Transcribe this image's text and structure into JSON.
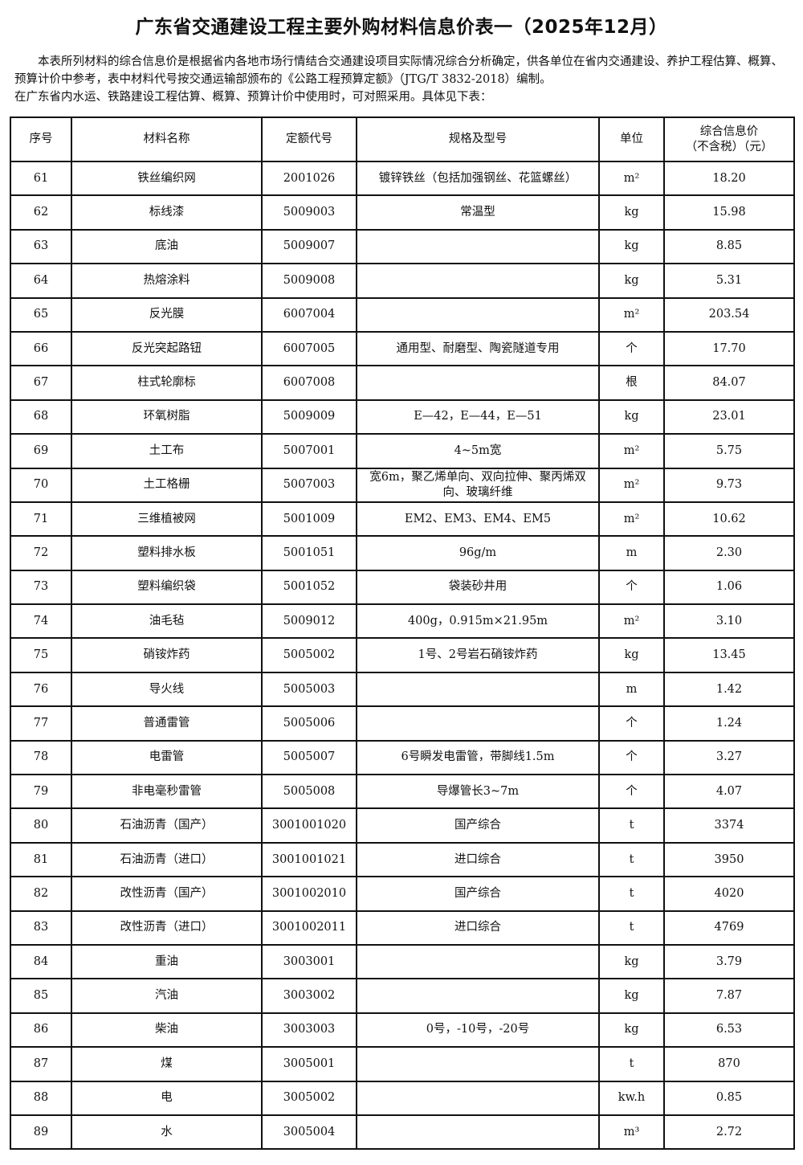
{
  "title": "广东省交通建设工程主要外购材料信息价表一（2025年12月）",
  "intro": [
    "本表所列材料的综合信息价是根据省内各地市场行情结合交通建设项目实际情况综合分析确定，供各单位在省内交通建设、养护工程估算、概算、预算计价中参考，表中材料代号按交通运输部颁布的《公路工程预算定额》（JTG/T 3832-2018）编制。",
    "在广东省内水运、铁路建设工程估算、概算、预算计价中使用时，可对照采用。具体见下表："
  ],
  "table": {
    "headers": [
      "序号",
      "材料名称",
      "定额代号",
      "规格及型号",
      "单位",
      "综合信息价",
      "（不含税）（元）"
    ],
    "rows": [
      [
        "61",
        "铁丝编织网",
        "2001026",
        "镀锌铁丝（包括加强钢丝、花篮螺丝）",
        "m²",
        "18.20"
      ],
      [
        "62",
        "标线漆",
        "5009003",
        "常温型",
        "kg",
        "15.98"
      ],
      [
        "63",
        "底油",
        "5009007",
        "",
        "kg",
        "8.85"
      ],
      [
        "64",
        "热熔涂料",
        "5009008",
        "",
        "kg",
        "5.31"
      ],
      [
        "65",
        "反光膜",
        "6007004",
        "",
        "m²",
        "203.54"
      ],
      [
        "66",
        "反光突起路钮",
        "6007005",
        "通用型、耐磨型、陶瓷隧道专用",
        "个",
        "17.70"
      ],
      [
        "67",
        "柱式轮廓标",
        "6007008",
        "",
        "根",
        "84.07"
      ],
      [
        "68",
        "环氧树脂",
        "5009009",
        "E—42，E—44，E—51",
        "kg",
        "23.01"
      ],
      [
        "69",
        "土工布",
        "5007001",
        "4~5m宽",
        "m²",
        "5.75"
      ],
      [
        "70",
        "土工格栅",
        "5007003",
        "宽6m，聚乙烯单向、双向拉伸、聚丙烯双向、玻璃纤维",
        "m²",
        "9.73"
      ],
      [
        "71",
        "三维植被网",
        "5001009",
        "EM2、EM3、EM4、EM5",
        "m²",
        "10.62"
      ],
      [
        "72",
        "塑料排水板",
        "5001051",
        "96g/m",
        "m",
        "2.30"
      ],
      [
        "73",
        "塑料编织袋",
        "5001052",
        "袋装砂井用",
        "个",
        "1.06"
      ],
      [
        "74",
        "油毛毡",
        "5009012",
        "400g，0.915m×21.95m",
        "m²",
        "3.10"
      ],
      [
        "75",
        "硝铵炸药",
        "5005002",
        "1号、2号岩石硝铵炸药",
        "kg",
        "13.45"
      ],
      [
        "76",
        "导火线",
        "5005003",
        "",
        "m",
        "1.42"
      ],
      [
        "77",
        "普通雷管",
        "5005006",
        "",
        "个",
        "1.24"
      ],
      [
        "78",
        "电雷管",
        "5005007",
        "6号瞬发电雷管，带脚线1.5m",
        "个",
        "3.27"
      ],
      [
        "79",
        "非电毫秒雷管",
        "5005008",
        "导爆管长3~7m",
        "个",
        "4.07"
      ],
      [
        "80",
        "石油沥青（国产）",
        "3001001020",
        "国产综合",
        "t",
        "3374"
      ],
      [
        "81",
        "石油沥青（进口）",
        "3001001021",
        "进口综合",
        "t",
        "3950"
      ],
      [
        "82",
        "改性沥青（国产）",
        "3001002010",
        "国产综合",
        "t",
        "4020"
      ],
      [
        "83",
        "改性沥青（进口）",
        "3001002011",
        "进口综合",
        "t",
        "4769"
      ],
      [
        "84",
        "重油",
        "3003001",
        "",
        "kg",
        "3.79"
      ],
      [
        "85",
        "汽油",
        "3003002",
        "",
        "kg",
        "7.87"
      ],
      [
        "86",
        "柴油",
        "3003003",
        "0号，-10号，-20号",
        "kg",
        "6.53"
      ],
      [
        "87",
        "煤",
        "3005001",
        "",
        "t",
        "870"
      ],
      [
        "88",
        "电",
        "3005002",
        "",
        "kw.h",
        "0.85"
      ],
      [
        "89",
        "水",
        "3005004",
        "",
        "m³",
        "2.72"
      ]
    ]
  }
}
